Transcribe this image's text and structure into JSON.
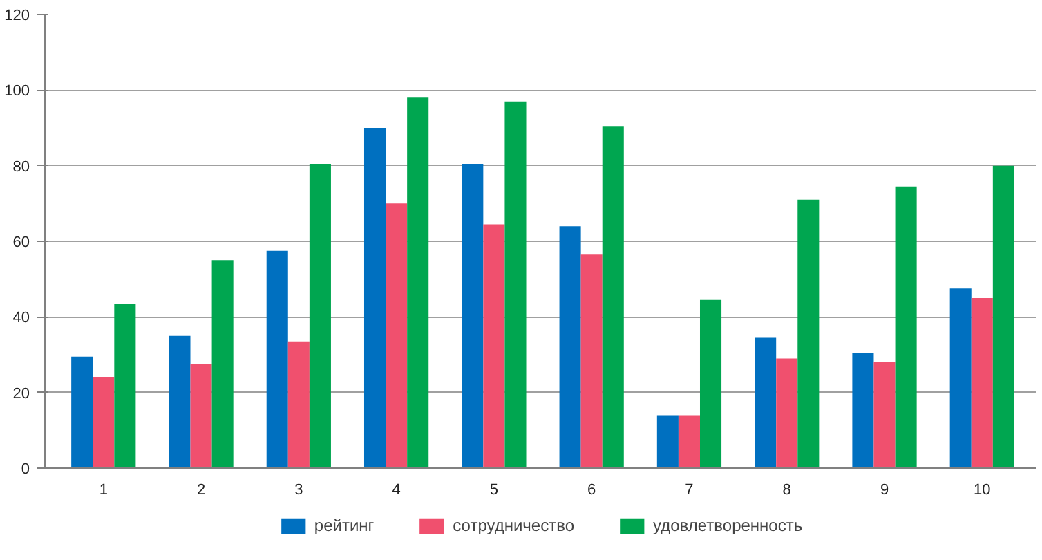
{
  "chart_data": {
    "type": "bar",
    "categories": [
      "1",
      "2",
      "3",
      "4",
      "5",
      "6",
      "7",
      "8",
      "9",
      "10"
    ],
    "series": [
      {
        "name": "рейтинг",
        "color": "#0070c0",
        "values": [
          29.5,
          35,
          57.5,
          90,
          80.5,
          64,
          14,
          34.5,
          30.5,
          47.5
        ]
      },
      {
        "name": "сотрудничество",
        "color": "#f0506e",
        "values": [
          24,
          27.5,
          33.5,
          70,
          64.5,
          56.5,
          14,
          29,
          28,
          45
        ]
      },
      {
        "name": "удовлетворенность",
        "color": "#00a650",
        "values": [
          43.5,
          55,
          80.5,
          98,
          97,
          90.5,
          44.5,
          71,
          74.5,
          80
        ]
      }
    ],
    "ylim": [
      0,
      120
    ],
    "yticks": [
      0,
      20,
      40,
      60,
      80,
      100,
      120
    ],
    "grid": "y",
    "legend": "bottom"
  }
}
